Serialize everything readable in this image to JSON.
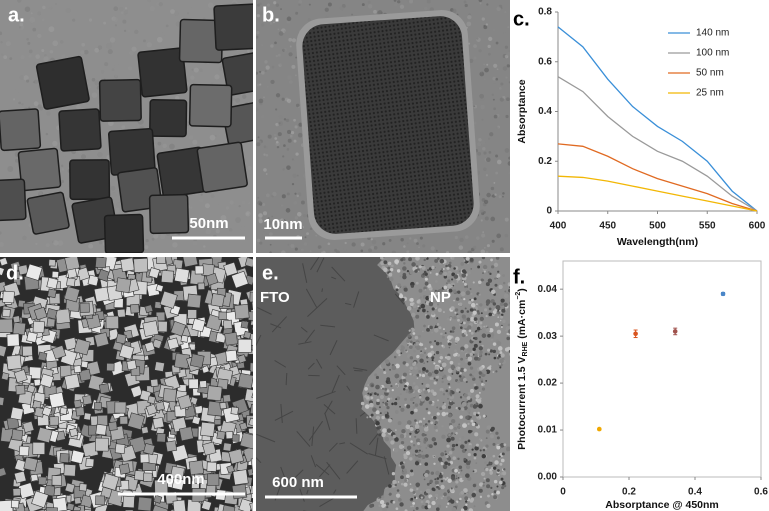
{
  "panels": [
    {
      "label": "a.",
      "scale_bar": "50nm"
    },
    {
      "label": "b.",
      "scale_bar": "10nm"
    },
    {
      "label": "d.",
      "scale_bar": "400nm"
    },
    {
      "label": "e.",
      "scale_bar": "600 nm",
      "regions": [
        "FTO",
        "NP"
      ]
    }
  ],
  "chart_data": [
    {
      "type": "line",
      "label": "c.",
      "xlabel": "Wavelength(nm)",
      "ylabel": "Absorptance",
      "x": [
        400,
        425,
        450,
        475,
        500,
        525,
        550,
        575,
        600
      ],
      "series": [
        {
          "name": "140 nm",
          "color": "#3a8fd8",
          "values": [
            0.74,
            0.66,
            0.53,
            0.42,
            0.34,
            0.28,
            0.2,
            0.08,
            0
          ]
        },
        {
          "name": "100 nm",
          "color": "#9a9a9a",
          "values": [
            0.54,
            0.48,
            0.38,
            0.3,
            0.24,
            0.2,
            0.14,
            0.06,
            0
          ]
        },
        {
          "name": "50 nm",
          "color": "#e06a22",
          "values": [
            0.27,
            0.26,
            0.22,
            0.17,
            0.13,
            0.1,
            0.07,
            0.03,
            0
          ]
        },
        {
          "name": "25 nm",
          "color": "#f2b705",
          "values": [
            0.14,
            0.135,
            0.12,
            0.1,
            0.08,
            0.06,
            0.04,
            0.02,
            0
          ]
        }
      ],
      "xlim": [
        400,
        600
      ],
      "ylim": [
        0,
        0.8
      ],
      "xticks": [
        400,
        450,
        500,
        550,
        600
      ],
      "yticks": [
        0,
        0.2,
        0.4,
        0.6,
        0.8
      ],
      "legend": "upper right"
    },
    {
      "type": "scatter",
      "label": "f.",
      "xlabel": "Absorptance @ 450nm",
      "ylabel": [
        "Photocurrent  1.5 V",
        "RHE",
        " (mA·cm",
        "−2",
        ")"
      ],
      "x": [
        0.11,
        0.22,
        0.34,
        0.485
      ],
      "values": [
        0.0102,
        0.0305,
        0.031,
        0.039
      ],
      "errors": [
        0.0002,
        0.0008,
        0.0007,
        0.0003
      ],
      "colors": [
        "#f0a800",
        "#d9541e",
        "#a0524d",
        "#4a86c8"
      ],
      "xlim": [
        0,
        0.6
      ],
      "ylim": [
        0,
        0.046
      ],
      "xticks": [
        0,
        0.2,
        0.4,
        0.6
      ],
      "yticks": [
        {
          "value": 0,
          "label": "0.00"
        },
        {
          "value": 0.01,
          "label": "0.01"
        },
        {
          "value": 0.02,
          "label": "0.02"
        },
        {
          "value": 0.03,
          "label": "0.03"
        },
        {
          "value": 0.04,
          "label": "0.04"
        }
      ],
      "frame": true
    }
  ]
}
